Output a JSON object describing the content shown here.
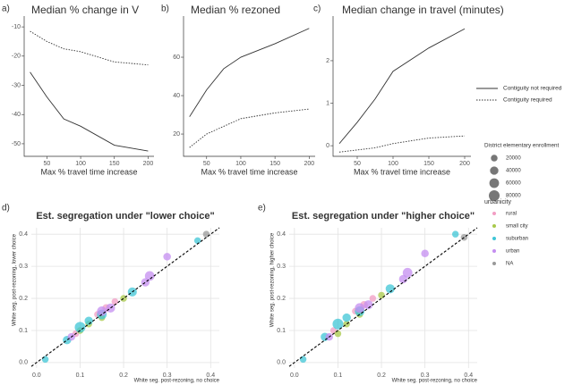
{
  "chart_data": [
    {
      "type": "line",
      "label": "a)",
      "title": "Median % change in V",
      "x_label": "Max % travel time increase",
      "x": [
        25,
        50,
        75,
        100,
        150,
        200
      ],
      "series": [
        {
          "name": "Contiguity not required",
          "style": "solid",
          "color": "#333333",
          "values": [
            -25.5,
            -34,
            -41.5,
            -44,
            -50.5,
            -52.5
          ]
        },
        {
          "name": "Contiguity required",
          "style": "dotted",
          "color": "#333333",
          "values": [
            -11.5,
            -15,
            -17.5,
            -18.5,
            -22,
            -23
          ]
        }
      ],
      "xlim": [
        16.25,
        208.75
      ],
      "xticks": [
        50,
        100,
        150,
        200
      ],
      "ylim": [
        -54.3,
        -6.3
      ],
      "yticks": [
        -10,
        -20,
        -30,
        -40,
        -50
      ]
    },
    {
      "type": "line",
      "label": "b)",
      "title": "Median % rezoned",
      "x_label": "Max % travel time increase",
      "x": [
        25,
        50,
        75,
        100,
        150,
        200
      ],
      "series": [
        {
          "style": "solid",
          "color": "#333333",
          "values": [
            29,
            43,
            54,
            60,
            67,
            75
          ]
        },
        {
          "style": "dotted",
          "color": "#333333",
          "values": [
            13,
            20,
            24,
            28,
            31,
            33
          ]
        }
      ],
      "xlim": [
        16.25,
        208.75
      ],
      "xticks": [
        50,
        100,
        150,
        200
      ],
      "ylim": [
        8.4,
        81.4
      ],
      "yticks": [
        20,
        40,
        60
      ]
    },
    {
      "type": "line",
      "label": "c)",
      "title": "Median change in travel (minutes)",
      "x_label": "Max % travel time increase",
      "x": [
        25,
        50,
        75,
        100,
        150,
        200
      ],
      "series": [
        {
          "style": "solid",
          "color": "#333333",
          "values": [
            0.05,
            0.55,
            1.1,
            1.75,
            2.3,
            2.75
          ]
        },
        {
          "style": "dotted",
          "color": "#333333",
          "values": [
            -0.15,
            -0.1,
            -0.05,
            0.05,
            0.18,
            0.23
          ]
        }
      ],
      "xlim": [
        16.25,
        208.75
      ],
      "xticks": [
        50,
        100,
        150,
        200
      ],
      "ylim": [
        -0.25,
        3.05
      ],
      "yticks": [
        0,
        1,
        2
      ]
    },
    {
      "type": "scatter",
      "label": "d)",
      "title": "Est. segregation under \"lower choice\"",
      "x_label": "White seg. post-rezoning, no choice",
      "y_label": "White seg. post-rezoning, lower choice",
      "size_title": "District elementary enrollment",
      "size_values": [
        20000,
        40000,
        60000,
        80000
      ],
      "legend_title": "urbanicity",
      "series": [
        {
          "name": "rural",
          "color": "#f29ec4",
          "x": [
            0.09,
            0.14,
            0.18,
            0.16
          ],
          "values": [
            0.09,
            0.15,
            0.19,
            0.17
          ],
          "sizes": [
            20000,
            20000,
            20000,
            30000
          ]
        },
        {
          "name": "small city",
          "color": "#a8c94a",
          "x": [
            0.1,
            0.15,
            0.2,
            0.12
          ],
          "values": [
            0.1,
            0.14,
            0.2,
            0.12
          ],
          "sizes": [
            20000,
            20000,
            20000,
            20000
          ]
        },
        {
          "name": "suburban",
          "color": "#3fc6d6",
          "x": [
            0.02,
            0.07,
            0.1,
            0.12,
            0.15,
            0.22,
            0.37
          ],
          "values": [
            0.01,
            0.07,
            0.11,
            0.13,
            0.15,
            0.22,
            0.38
          ],
          "sizes": [
            20000,
            40000,
            80000,
            40000,
            60000,
            50000,
            20000
          ]
        },
        {
          "name": "urban",
          "color": "#c48ef0",
          "x": [
            0.08,
            0.15,
            0.17,
            0.25,
            0.26,
            0.3
          ],
          "values": [
            0.08,
            0.16,
            0.17,
            0.25,
            0.27,
            0.33
          ],
          "sizes": [
            30000,
            60000,
            50000,
            40000,
            60000,
            30000
          ]
        },
        {
          "name": "NA",
          "color": "#999999",
          "x": [
            0.39
          ],
          "values": [
            0.4
          ],
          "sizes": [
            20000
          ]
        }
      ],
      "xlim": [
        -0.012,
        0.42
      ],
      "xticks": [
        {
          "value": 0,
          "label": "0.0"
        },
        0.1,
        0.2,
        0.3,
        0.4
      ],
      "ylim": [
        -0.017,
        0.42
      ],
      "yticks": [
        {
          "value": 0,
          "label": "0.0"
        },
        0.1,
        0.2,
        0.3,
        0.4
      ]
    },
    {
      "type": "scatter",
      "label": "e)",
      "title": "Est. segregation under \"higher choice\"",
      "x_label": "White seg. post-rezoning, no choice",
      "y_label": "White seg. post-rezoning, higher choice",
      "series": [
        {
          "color": "#f29ec4",
          "x": [
            0.09,
            0.14,
            0.18,
            0.16
          ],
          "values": [
            0.1,
            0.16,
            0.2,
            0.18
          ],
          "sizes": [
            20000,
            20000,
            20000,
            30000
          ]
        },
        {
          "color": "#a8c94a",
          "x": [
            0.1,
            0.15,
            0.2,
            0.12
          ],
          "values": [
            0.09,
            0.15,
            0.21,
            0.12
          ],
          "sizes": [
            20000,
            20000,
            20000,
            20000
          ]
        },
        {
          "color": "#3fc6d6",
          "x": [
            0.02,
            0.07,
            0.1,
            0.12,
            0.15,
            0.22,
            0.37
          ],
          "values": [
            0.01,
            0.08,
            0.12,
            0.14,
            0.16,
            0.23,
            0.4
          ],
          "sizes": [
            20000,
            40000,
            80000,
            40000,
            60000,
            50000,
            20000
          ]
        },
        {
          "color": "#c48ef0",
          "x": [
            0.08,
            0.15,
            0.17,
            0.25,
            0.26,
            0.3
          ],
          "values": [
            0.08,
            0.17,
            0.18,
            0.26,
            0.28,
            0.34
          ],
          "sizes": [
            30000,
            60000,
            50000,
            40000,
            60000,
            30000
          ]
        },
        {
          "color": "#999999",
          "x": [
            0.39
          ],
          "values": [
            0.39
          ],
          "sizes": [
            20000
          ]
        }
      ],
      "xlim": [
        -0.012,
        0.42
      ],
      "xticks": [
        {
          "value": 0,
          "label": "0.0"
        },
        0.1,
        0.2,
        0.3,
        0.4
      ],
      "ylim": [
        -0.017,
        0.42
      ],
      "yticks": [
        {
          "value": 0,
          "label": "0.0"
        },
        0.1,
        0.2,
        0.3,
        0.4
      ]
    }
  ]
}
